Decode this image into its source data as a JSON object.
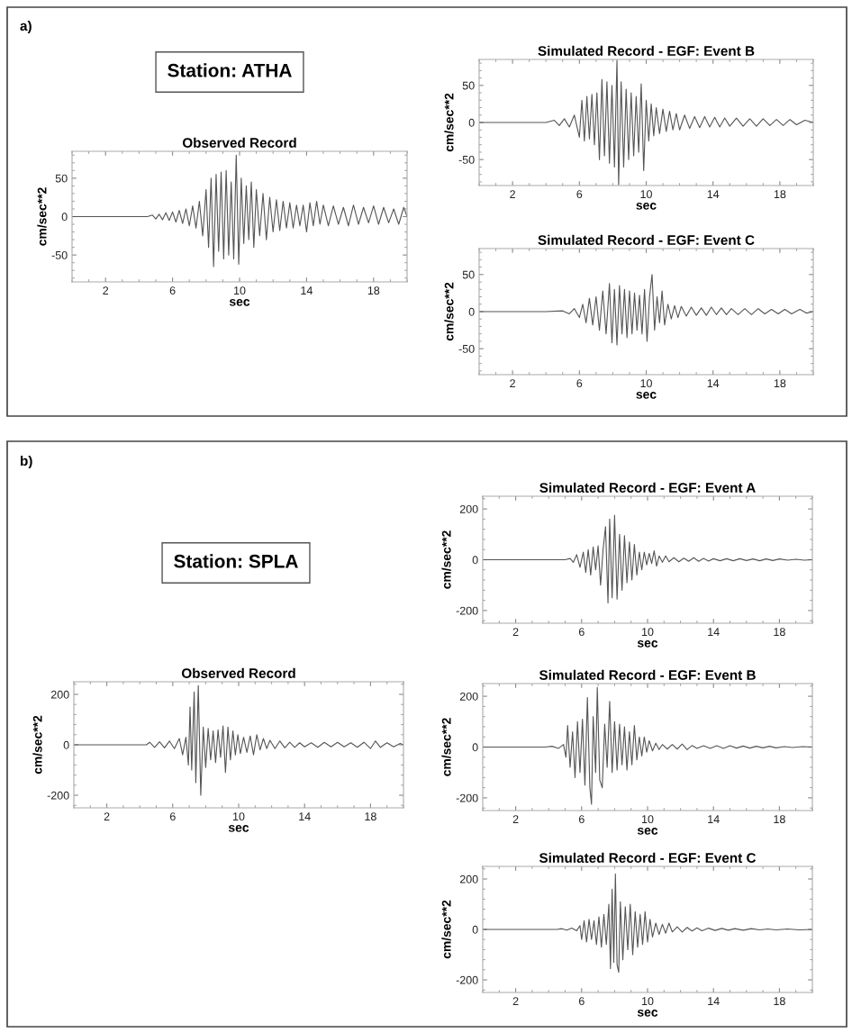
{
  "chart_data": [
    {
      "type": "line",
      "title": "Observed Record",
      "xlabel": "sec",
      "ylabel": "cm/sec**2",
      "annotations": [
        "a)",
        "Station: ATHA"
      ],
      "xlim": [
        0,
        20
      ],
      "ylim": [
        -85,
        85
      ],
      "xticks": [
        2,
        6,
        10,
        14,
        18
      ],
      "yticks": [
        -50,
        0,
        50
      ],
      "series": [
        {
          "color": "#555555",
          "x": [
            0,
            4.5,
            4.8,
            5.0,
            5.2,
            5.4,
            5.6,
            5.8,
            6.0,
            6.2,
            6.4,
            6.6,
            6.8,
            7.0,
            7.2,
            7.4,
            7.6,
            7.8,
            8.0,
            8.15,
            8.3,
            8.45,
            8.6,
            8.75,
            8.9,
            9.05,
            9.2,
            9.35,
            9.5,
            9.65,
            9.8,
            9.95,
            10.1,
            10.25,
            10.4,
            10.55,
            10.7,
            10.85,
            11.0,
            11.2,
            11.4,
            11.6,
            11.8,
            12.0,
            12.2,
            12.4,
            12.6,
            12.8,
            13.0,
            13.2,
            13.4,
            13.6,
            13.8,
            14.0,
            14.2,
            14.4,
            14.6,
            14.8,
            15.0,
            15.3,
            15.6,
            15.9,
            16.2,
            16.5,
            16.8,
            17.1,
            17.4,
            17.7,
            18.0,
            18.3,
            18.6,
            18.9,
            19.2,
            19.5,
            19.8,
            20
          ],
          "values": [
            0,
            0,
            2,
            -3,
            3,
            -4,
            5,
            -5,
            6,
            -7,
            8,
            -9,
            10,
            -12,
            14,
            -15,
            20,
            -25,
            35,
            -40,
            50,
            -65,
            55,
            -45,
            58,
            -55,
            60,
            -50,
            45,
            -55,
            80,
            -62,
            50,
            -35,
            40,
            -30,
            45,
            -40,
            35,
            -25,
            30,
            -30,
            25,
            -20,
            22,
            -18,
            20,
            -15,
            18,
            -15,
            15,
            -12,
            15,
            -20,
            18,
            -12,
            20,
            -10,
            15,
            -12,
            14,
            -10,
            12,
            -12,
            15,
            -10,
            12,
            -8,
            14,
            -10,
            12,
            -8,
            10,
            -10,
            12,
            0
          ]
        }
      ]
    },
    {
      "type": "line",
      "title": "Simulated Record - EGF: Event B",
      "xlabel": "sec",
      "ylabel": "cm/sec**2",
      "xlim": [
        0,
        20
      ],
      "ylim": [
        -85,
        85
      ],
      "xticks": [
        2,
        6,
        10,
        14,
        18
      ],
      "yticks": [
        -50,
        0,
        50
      ],
      "series": [
        {
          "color": "#555555",
          "x": [
            0,
            4.0,
            4.5,
            4.8,
            5.1,
            5.4,
            5.7,
            6.0,
            6.15,
            6.3,
            6.45,
            6.6,
            6.75,
            6.9,
            7.05,
            7.2,
            7.35,
            7.5,
            7.65,
            7.8,
            7.95,
            8.1,
            8.25,
            8.35,
            8.5,
            8.65,
            8.8,
            8.95,
            9.1,
            9.25,
            9.4,
            9.55,
            9.7,
            9.85,
            10.0,
            10.15,
            10.3,
            10.45,
            10.6,
            10.8,
            11.0,
            11.2,
            11.4,
            11.6,
            11.8,
            12.0,
            12.3,
            12.6,
            12.9,
            13.2,
            13.5,
            13.8,
            14.1,
            14.4,
            14.7,
            15.0,
            15.4,
            15.8,
            16.2,
            16.6,
            17.0,
            17.4,
            17.8,
            18.2,
            18.6,
            19.0,
            19.5,
            20
          ],
          "values": [
            0,
            0,
            3,
            -4,
            5,
            -6,
            10,
            -20,
            30,
            -25,
            35,
            -22,
            38,
            -30,
            40,
            -50,
            58,
            -45,
            55,
            -55,
            50,
            -60,
            84,
            -84,
            55,
            -60,
            45,
            -50,
            40,
            -45,
            35,
            -40,
            52,
            -65,
            30,
            -25,
            25,
            -18,
            20,
            -15,
            18,
            -12,
            15,
            -10,
            12,
            -10,
            10,
            -8,
            8,
            -7,
            8,
            -6,
            7,
            -6,
            6,
            -5,
            6,
            -5,
            5,
            -5,
            5,
            -4,
            4,
            -4,
            4,
            -3,
            3,
            0
          ]
        }
      ]
    },
    {
      "type": "line",
      "title": "Simulated Record - EGF: Event C",
      "xlabel": "sec",
      "ylabel": "cm/sec**2",
      "xlim": [
        0,
        20
      ],
      "ylim": [
        -85,
        85
      ],
      "xticks": [
        2,
        6,
        10,
        14,
        18
      ],
      "yticks": [
        -50,
        0,
        50
      ],
      "series": [
        {
          "color": "#555555",
          "x": [
            0,
            4.0,
            5.0,
            5.4,
            5.7,
            6.0,
            6.2,
            6.4,
            6.6,
            6.8,
            7.0,
            7.2,
            7.4,
            7.6,
            7.8,
            7.95,
            8.1,
            8.25,
            8.4,
            8.55,
            8.7,
            8.85,
            9.0,
            9.15,
            9.3,
            9.45,
            9.6,
            9.75,
            9.9,
            10.05,
            10.2,
            10.35,
            10.5,
            10.65,
            10.8,
            10.95,
            11.1,
            11.3,
            11.5,
            11.7,
            11.9,
            12.1,
            12.4,
            12.7,
            13.0,
            13.3,
            13.6,
            13.9,
            14.2,
            14.5,
            14.8,
            15.1,
            15.5,
            15.9,
            16.3,
            16.7,
            17.1,
            17.5,
            17.9,
            18.3,
            18.7,
            19.2,
            19.6,
            20
          ],
          "values": [
            0,
            0,
            1,
            -3,
            4,
            -8,
            10,
            -15,
            18,
            -18,
            20,
            -25,
            28,
            -30,
            38,
            -42,
            30,
            -45,
            35,
            -30,
            30,
            -35,
            28,
            -30,
            25,
            -25,
            22,
            -30,
            30,
            -40,
            20,
            50,
            -25,
            20,
            -15,
            28,
            -18,
            10,
            -10,
            8,
            -8,
            7,
            -6,
            6,
            -5,
            5,
            -5,
            6,
            -4,
            5,
            -4,
            4,
            -4,
            4,
            -4,
            4,
            -3,
            3,
            -3,
            3,
            -3,
            3,
            -2,
            0
          ]
        }
      ]
    },
    {
      "type": "line",
      "title": "Observed Record",
      "xlabel": "sec",
      "ylabel": "cm/sec**2",
      "annotations": [
        "b)",
        "Station: SPLA"
      ],
      "xlim": [
        0,
        20
      ],
      "ylim": [
        -250,
        250
      ],
      "xticks": [
        2,
        6,
        10,
        14,
        18
      ],
      "yticks": [
        -200,
        0,
        200
      ],
      "series": [
        {
          "color": "#555555",
          "x": [
            0,
            4.4,
            4.6,
            4.9,
            5.2,
            5.5,
            5.8,
            6.1,
            6.4,
            6.6,
            6.8,
            6.95,
            7.05,
            7.15,
            7.3,
            7.4,
            7.55,
            7.7,
            7.85,
            8.0,
            8.15,
            8.3,
            8.45,
            8.6,
            8.75,
            8.9,
            9.05,
            9.2,
            9.35,
            9.5,
            9.65,
            9.8,
            9.95,
            10.1,
            10.3,
            10.5,
            10.7,
            10.9,
            11.1,
            11.3,
            11.5,
            11.7,
            11.9,
            12.2,
            12.5,
            12.8,
            13.1,
            13.4,
            13.7,
            14.0,
            14.4,
            14.8,
            15.2,
            15.6,
            16.0,
            16.4,
            16.8,
            17.2,
            17.6,
            18.0,
            18.3,
            18.6,
            19.0,
            19.4,
            19.8,
            20
          ],
          "values": [
            0,
            0,
            10,
            -10,
            12,
            -12,
            15,
            -15,
            25,
            -40,
            30,
            -80,
            150,
            -100,
            210,
            -150,
            235,
            -200,
            70,
            -90,
            65,
            -60,
            55,
            -70,
            60,
            -50,
            75,
            -110,
            70,
            -60,
            55,
            -40,
            40,
            -35,
            30,
            -30,
            35,
            -40,
            40,
            -20,
            25,
            -15,
            18,
            -15,
            15,
            -12,
            10,
            -10,
            8,
            -8,
            8,
            -10,
            10,
            -8,
            10,
            -8,
            8,
            -10,
            10,
            -15,
            15,
            -10,
            8,
            -8,
            5,
            0
          ]
        }
      ]
    },
    {
      "type": "line",
      "title": "Simulated Record - EGF: Event A",
      "xlabel": "sec",
      "ylabel": "cm/sec**2",
      "xlim": [
        0,
        20
      ],
      "ylim": [
        -250,
        250
      ],
      "xticks": [
        2,
        6,
        10,
        14,
        18
      ],
      "yticks": [
        -200,
        0,
        200
      ],
      "series": [
        {
          "color": "#555555",
          "x": [
            0,
            5.0,
            5.3,
            5.5,
            5.7,
            5.9,
            6.1,
            6.25,
            6.4,
            6.55,
            6.7,
            6.85,
            7.0,
            7.15,
            7.3,
            7.45,
            7.6,
            7.7,
            7.85,
            8.0,
            8.15,
            8.3,
            8.45,
            8.6,
            8.75,
            8.9,
            9.05,
            9.2,
            9.35,
            9.5,
            9.65,
            9.8,
            9.95,
            10.1,
            10.25,
            10.4,
            10.55,
            10.7,
            10.9,
            11.1,
            11.3,
            11.6,
            11.9,
            12.2,
            12.5,
            12.8,
            13.1,
            13.4,
            13.7,
            14.0,
            14.4,
            14.8,
            15.2,
            15.6,
            16.0,
            16.4,
            16.8,
            17.2,
            17.6,
            18.0,
            18.5,
            19.0,
            19.5,
            20
          ],
          "values": [
            0,
            0,
            5,
            -10,
            20,
            -30,
            30,
            -50,
            40,
            -60,
            50,
            -40,
            55,
            -100,
            40,
            130,
            -170,
            160,
            -150,
            175,
            -155,
            100,
            -120,
            95,
            -90,
            70,
            -80,
            60,
            -60,
            30,
            -40,
            30,
            -20,
            25,
            -15,
            35,
            -25,
            15,
            -10,
            15,
            -8,
            8,
            -8,
            6,
            -6,
            8,
            -6,
            5,
            -5,
            4,
            -4,
            4,
            -4,
            4,
            -3,
            3,
            -4,
            3,
            -3,
            3,
            -2,
            2,
            -2,
            0
          ]
        }
      ]
    },
    {
      "type": "line",
      "title": "Simulated Record - EGF: Event B",
      "xlabel": "sec",
      "ylabel": "cm/sec**2",
      "xlim": [
        0,
        20
      ],
      "ylim": [
        -250,
        250
      ],
      "xticks": [
        2,
        6,
        10,
        14,
        18
      ],
      "yticks": [
        -200,
        0,
        200
      ],
      "series": [
        {
          "color": "#555555",
          "x": [
            0,
            3.8,
            4.2,
            4.6,
            4.9,
            5.05,
            5.15,
            5.3,
            5.45,
            5.6,
            5.75,
            5.9,
            6.05,
            6.2,
            6.35,
            6.5,
            6.6,
            6.7,
            6.85,
            6.95,
            7.1,
            7.25,
            7.4,
            7.55,
            7.7,
            7.85,
            8.0,
            8.15,
            8.3,
            8.45,
            8.6,
            8.75,
            8.9,
            9.05,
            9.2,
            9.35,
            9.5,
            9.65,
            9.8,
            9.95,
            10.1,
            10.3,
            10.5,
            10.7,
            10.9,
            11.2,
            11.5,
            11.8,
            12.1,
            12.4,
            12.7,
            13.0,
            13.4,
            13.8,
            14.2,
            14.6,
            15.0,
            15.4,
            15.8,
            16.2,
            16.6,
            17.0,
            17.4,
            17.8,
            18.3,
            18.8,
            19.4,
            20
          ],
          "values": [
            0,
            0,
            3,
            -5,
            10,
            -40,
            85,
            -80,
            60,
            -120,
            100,
            -100,
            110,
            -150,
            195,
            -160,
            -225,
            120,
            -100,
            235,
            -130,
            -160,
            90,
            -80,
            180,
            -100,
            100,
            -90,
            90,
            -70,
            80,
            -90,
            60,
            -70,
            85,
            -50,
            40,
            -35,
            40,
            -20,
            25,
            -15,
            15,
            -10,
            10,
            -8,
            10,
            -8,
            12,
            -10,
            6,
            -5,
            5,
            -5,
            5,
            -5,
            5,
            -4,
            4,
            -4,
            3,
            -3,
            3,
            -3,
            2,
            -2,
            2,
            0
          ]
        }
      ]
    },
    {
      "type": "line",
      "title": "Simulated Record - EGF: Event C",
      "xlabel": "sec",
      "ylabel": "cm/sec**2",
      "xlim": [
        0,
        20
      ],
      "ylim": [
        -250,
        250
      ],
      "xticks": [
        2,
        6,
        10,
        14,
        18
      ],
      "yticks": [
        -200,
        0,
        200
      ],
      "series": [
        {
          "color": "#555555",
          "x": [
            0,
            4.5,
            4.8,
            5.1,
            5.4,
            5.7,
            5.9,
            6.0,
            6.15,
            6.3,
            6.45,
            6.6,
            6.75,
            6.9,
            7.05,
            7.2,
            7.35,
            7.5,
            7.65,
            7.75,
            7.85,
            7.95,
            8.05,
            8.15,
            8.25,
            8.35,
            8.5,
            8.65,
            8.8,
            8.95,
            9.1,
            9.25,
            9.4,
            9.55,
            9.7,
            9.85,
            10.0,
            10.15,
            10.3,
            10.5,
            10.7,
            10.9,
            11.1,
            11.3,
            11.5,
            11.8,
            12.1,
            12.4,
            12.7,
            13.0,
            13.3,
            13.7,
            14.1,
            14.5,
            14.9,
            15.3,
            15.8,
            16.3,
            16.8,
            17.3,
            17.8,
            18.5,
            19.2,
            20
          ],
          "values": [
            0,
            0,
            3,
            -3,
            5,
            -5,
            15,
            -40,
            35,
            -50,
            40,
            -40,
            35,
            -60,
            50,
            -70,
            60,
            -60,
            100,
            -155,
            160,
            -130,
            220,
            -140,
            -170,
            110,
            -120,
            90,
            -80,
            100,
            -100,
            70,
            -70,
            60,
            -60,
            70,
            -50,
            40,
            -30,
            25,
            -20,
            20,
            -15,
            25,
            -10,
            10,
            -10,
            8,
            -6,
            6,
            -5,
            5,
            -4,
            4,
            -3,
            3,
            -3,
            3,
            -2,
            2,
            -2,
            2,
            -2,
            0
          ]
        }
      ]
    }
  ]
}
